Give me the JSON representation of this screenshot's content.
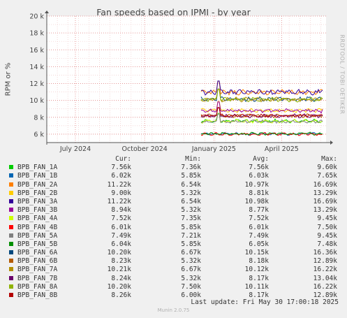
{
  "chart_data": {
    "type": "line",
    "title": "Fan speeds based on IPMI - by year",
    "ylabel": "RPM or %",
    "ylim": [
      5000,
      20000
    ],
    "y_ticks": [
      {
        "value": 6000,
        "label": "6 k"
      },
      {
        "value": 8000,
        "label": "8 k"
      },
      {
        "value": 10000,
        "label": "10 k"
      },
      {
        "value": 12000,
        "label": "12 k"
      },
      {
        "value": 14000,
        "label": "14 k"
      },
      {
        "value": 16000,
        "label": "16 k"
      },
      {
        "value": 18000,
        "label": "18 k"
      },
      {
        "value": 20000,
        "label": "20 k"
      }
    ],
    "xlim": [
      "2024-05-24",
      "2025-05-30"
    ],
    "x_ticks": [
      {
        "value": "2024-07-01",
        "label": "July 2024"
      },
      {
        "value": "2024-10-01",
        "label": "October 2024"
      },
      {
        "value": "2025-01-01",
        "label": "January 2025"
      },
      {
        "value": "2025-04-01",
        "label": "April 2025"
      }
    ],
    "grid": true,
    "data_start": "2024-12-15",
    "series": [
      {
        "name": "BPB_FAN_1A",
        "color": "#00cc00",
        "cur": "7.56k",
        "min": "7.36k",
        "avg": "7.56k",
        "max": "9.60k"
      },
      {
        "name": "BPB_FAN_1B",
        "color": "#0066b3",
        "cur": "6.02k",
        "min": "5.85k",
        "avg": "6.03k",
        "max": "7.65k"
      },
      {
        "name": "BPB_FAN_2A",
        "color": "#ff8000",
        "cur": "11.22k",
        "min": "6.54k",
        "avg": "10.97k",
        "max": "16.69k"
      },
      {
        "name": "BPB_FAN_2B",
        "color": "#ffcc00",
        "cur": "9.00k",
        "min": "5.32k",
        "avg": "8.81k",
        "max": "13.29k"
      },
      {
        "name": "BPB_FAN_3A",
        "color": "#330099",
        "cur": "11.22k",
        "min": "6.54k",
        "avg": "10.98k",
        "max": "16.69k"
      },
      {
        "name": "BPB_FAN_3B",
        "color": "#990099",
        "cur": "8.94k",
        "min": "5.32k",
        "avg": "8.77k",
        "max": "13.29k"
      },
      {
        "name": "BPB_FAN_4A",
        "color": "#ccff00",
        "cur": "7.52k",
        "min": "7.35k",
        "avg": "7.52k",
        "max": "9.45k"
      },
      {
        "name": "BPB_FAN_4B",
        "color": "#ff0000",
        "cur": "6.01k",
        "min": "5.85k",
        "avg": "6.01k",
        "max": "7.50k"
      },
      {
        "name": "BPB_FAN_5A",
        "color": "#808080",
        "cur": "7.49k",
        "min": "7.21k",
        "avg": "7.49k",
        "max": "9.45k"
      },
      {
        "name": "BPB_FAN_5B",
        "color": "#008f00",
        "cur": "6.04k",
        "min": "5.85k",
        "avg": "6.05k",
        "max": "7.48k"
      },
      {
        "name": "BPB_FAN_6A",
        "color": "#00487d",
        "cur": "10.20k",
        "min": "6.67k",
        "avg": "10.15k",
        "max": "16.36k"
      },
      {
        "name": "BPB_FAN_6B",
        "color": "#b35a00",
        "cur": "8.23k",
        "min": "5.32k",
        "avg": "8.18k",
        "max": "12.89k"
      },
      {
        "name": "BPB_FAN_7A",
        "color": "#b38f00",
        "cur": "10.21k",
        "min": "6.67k",
        "avg": "10.12k",
        "max": "16.22k"
      },
      {
        "name": "BPB_FAN_7B",
        "color": "#6b006b",
        "cur": "8.24k",
        "min": "5.32k",
        "avg": "8.17k",
        "max": "13.04k"
      },
      {
        "name": "BPB_FAN_8A",
        "color": "#8fb300",
        "cur": "10.20k",
        "min": "7.50k",
        "avg": "10.11k",
        "max": "16.22k"
      },
      {
        "name": "BPB_FAN_8B",
        "color": "#b30000",
        "cur": "8.26k",
        "min": "6.00k",
        "avg": "8.17k",
        "max": "12.89k"
      }
    ]
  },
  "legend_headers": {
    "cur": "Cur:",
    "min": "Min:",
    "avg": "Avg:",
    "max": "Max:"
  },
  "last_update": "Last update: Fri May 30 17:00:18 2025",
  "side_text": "RRDTOOL / TOBI OETIKER",
  "footer": "Munin 2.0.75"
}
